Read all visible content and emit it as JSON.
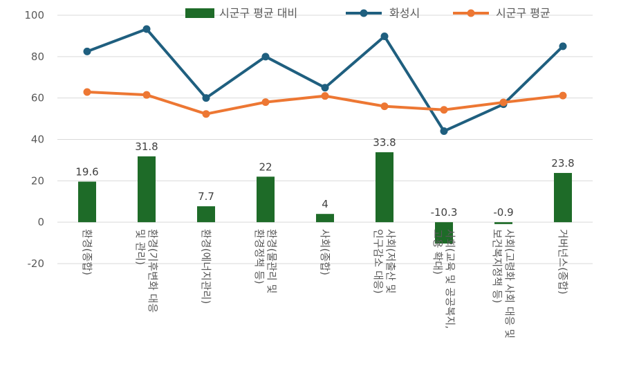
{
  "chart_data": {
    "type": "bar+line",
    "title": "",
    "categories": [
      "환경(종합)",
      "환경(기후변화 대응 및 관리)",
      "환경(에너지관리)",
      "환경(물관리 및 환경정책 등)",
      "사회(종합)",
      "사회(저출산 및 인구감소 대응)",
      "사회(교육 및 공공복지, 고용 확대)",
      "사회(고령화 사회 대응 및 보건복지정책 등)",
      "거버넌스(종합)"
    ],
    "category_lines": [
      [
        "환경(종합)"
      ],
      [
        "환경(기후변화 대응",
        "및 관리)"
      ],
      [
        "환경(에너지관리)"
      ],
      [
        "환경(물관리 및",
        "환경정책 등)"
      ],
      [
        "사회(종합)"
      ],
      [
        "사회(저출산 및",
        "인구감소 대응)"
      ],
      [
        "사회(교육 및 공공복지,",
        "고용 확대)"
      ],
      [
        "사회(고령화 사회 대응 및",
        "보건복지정책 등)"
      ],
      [
        "거버넌스(종합)"
      ]
    ],
    "series": [
      {
        "name": "시군구 평균 대비",
        "type": "bar",
        "color": "#1e6b28",
        "values": [
          19.6,
          31.8,
          7.7,
          22,
          4,
          33.8,
          -10.3,
          -0.9,
          23.8
        ],
        "data_labels": [
          "19.6",
          "31.8",
          "7.7",
          "22",
          "4",
          "33.8",
          "-10.3",
          "-0.9",
          "23.8"
        ]
      },
      {
        "name": "화성시",
        "type": "line",
        "color": "#1f5f7f",
        "values": [
          82.5,
          93.3,
          60,
          80,
          65,
          89.8,
          44,
          57,
          85
        ]
      },
      {
        "name": "시군구 평균",
        "type": "line",
        "color": "#ed7733",
        "values": [
          62.9,
          61.5,
          52.3,
          58,
          61,
          56,
          54.3,
          57.9,
          61.2
        ]
      }
    ],
    "ylim": [
      -20,
      100
    ],
    "yticks": [
      "-20",
      "0",
      "20",
      "40",
      "60",
      "80",
      "100"
    ],
    "ytick_values": [
      -20,
      0,
      20,
      40,
      60,
      80,
      100
    ],
    "grid": true,
    "legend_position": "top",
    "xlabel": "",
    "ylabel": ""
  }
}
